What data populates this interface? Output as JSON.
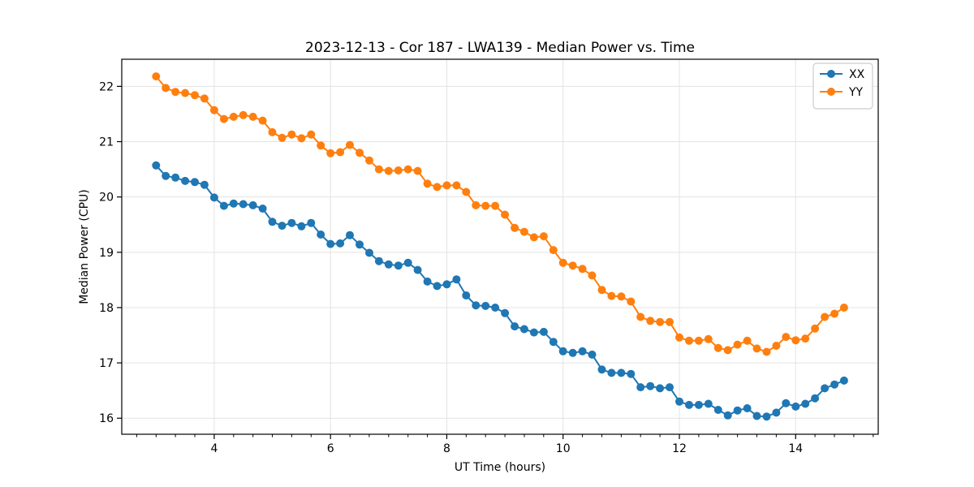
{
  "chart_data": {
    "type": "line",
    "title": "2023-12-13 - Cor 187 - LWA139 - Median Power vs. Time",
    "xlabel": "UT Time (hours)",
    "ylabel": "Median Power (CPU)",
    "xlim": [
      2.41,
      15.42
    ],
    "ylim": [
      15.71,
      22.49
    ],
    "x_major_ticks": [
      4,
      6,
      8,
      10,
      12,
      14
    ],
    "x_minor_tick_step": 0.33333,
    "y_major_ticks": [
      16,
      17,
      18,
      19,
      20,
      21,
      22
    ],
    "grid": true,
    "grid_color": "#e3e3e3",
    "legend_position": "upper right",
    "x": [
      3.0,
      3.167,
      3.333,
      3.5,
      3.667,
      3.833,
      4.0,
      4.167,
      4.333,
      4.5,
      4.667,
      4.833,
      5.0,
      5.167,
      5.333,
      5.5,
      5.667,
      5.833,
      6.0,
      6.167,
      6.333,
      6.5,
      6.667,
      6.833,
      7.0,
      7.167,
      7.333,
      7.5,
      7.667,
      7.833,
      8.0,
      8.167,
      8.333,
      8.5,
      8.667,
      8.833,
      9.0,
      9.167,
      9.333,
      9.5,
      9.667,
      9.833,
      10.0,
      10.167,
      10.333,
      10.5,
      10.667,
      10.833,
      11.0,
      11.167,
      11.333,
      11.5,
      11.667,
      11.833,
      12.0,
      12.167,
      12.333,
      12.5,
      12.667,
      12.833,
      13.0,
      13.167,
      13.333,
      13.5,
      13.667,
      13.833,
      14.0,
      14.167,
      14.333,
      14.5,
      14.667,
      14.833
    ],
    "series": [
      {
        "name": "XX",
        "color": "#1f77b4",
        "values": [
          20.57,
          20.38,
          20.35,
          20.29,
          20.27,
          20.22,
          19.99,
          19.84,
          19.88,
          19.87,
          19.85,
          19.79,
          19.55,
          19.48,
          19.53,
          19.47,
          19.53,
          19.32,
          19.15,
          19.16,
          19.31,
          19.14,
          18.99,
          18.84,
          18.78,
          18.76,
          18.81,
          18.68,
          18.47,
          18.39,
          18.42,
          18.51,
          18.22,
          18.04,
          18.03,
          18.0,
          17.9,
          17.66,
          17.61,
          17.55,
          17.56,
          17.38,
          17.21,
          17.18,
          17.21,
          17.15,
          16.88,
          16.82,
          16.82,
          16.8,
          16.56,
          16.58,
          16.54,
          16.56,
          16.3,
          16.24,
          16.24,
          16.26,
          16.15,
          16.05,
          16.14,
          16.18,
          16.04,
          16.03,
          16.1,
          16.27,
          16.21,
          16.26,
          16.36,
          16.54,
          16.61,
          16.68
        ]
      },
      {
        "name": "YY",
        "color": "#ff7f0e",
        "values": [
          22.18,
          21.97,
          21.9,
          21.88,
          21.84,
          21.78,
          21.57,
          21.41,
          21.45,
          21.48,
          21.45,
          21.38,
          21.17,
          21.07,
          21.13,
          21.06,
          21.13,
          20.93,
          20.79,
          20.81,
          20.94,
          20.8,
          20.66,
          20.5,
          20.47,
          20.48,
          20.5,
          20.47,
          20.24,
          20.18,
          20.21,
          20.21,
          20.09,
          19.85,
          19.84,
          19.84,
          19.68,
          19.44,
          19.37,
          19.27,
          19.29,
          19.04,
          18.81,
          18.76,
          18.7,
          18.58,
          18.32,
          18.21,
          18.2,
          18.11,
          17.83,
          17.76,
          17.74,
          17.74,
          17.46,
          17.4,
          17.4,
          17.43,
          17.27,
          17.23,
          17.33,
          17.4,
          17.26,
          17.2,
          17.31,
          17.47,
          17.41,
          17.44,
          17.62,
          17.83,
          17.89,
          18.0
        ]
      }
    ]
  },
  "colors": {
    "background": "#ffffff",
    "spine": "#000000",
    "tick": "#000000",
    "text": "#000000",
    "legend_border": "#cccccc"
  }
}
